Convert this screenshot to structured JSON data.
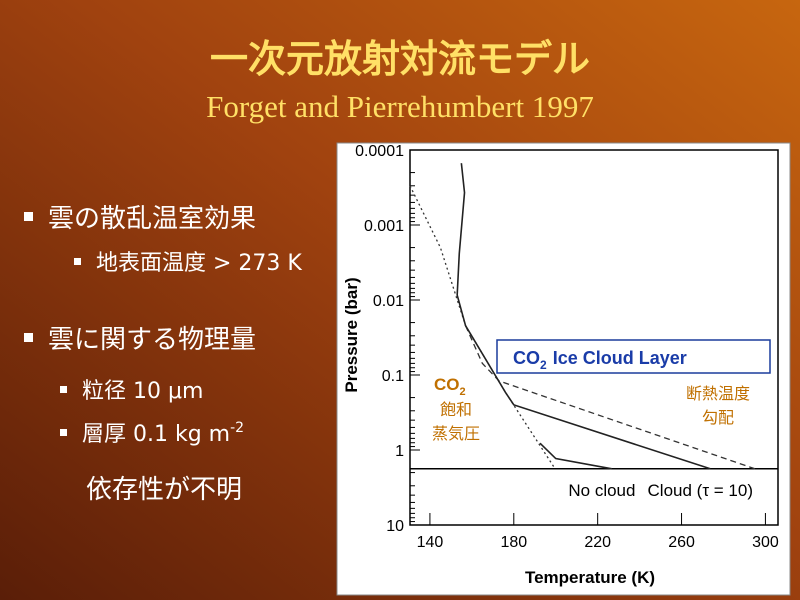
{
  "title": "一次元放射対流モデル",
  "subtitle": "Forget and Pierrehumbert 1997",
  "bullets": [
    {
      "text": "雲の散乱温室効果",
      "sub_bullets": [
        {
          "text": "地表面温度 > 273 K"
        }
      ]
    },
    {
      "text": "雲に関する物理量",
      "sub_bullets": [
        {
          "text": "粒径 10 μm"
        },
        {
          "text": "層厚 0.1 kg m",
          "sup": "-2"
        }
      ]
    }
  ],
  "note": "依存性が不明",
  "chart_data": {
    "type": "line",
    "xlabel": "Temperature (K)",
    "ylabel": "Pressure (bar)",
    "xlim": [
      130.5,
      306
    ],
    "xticks": [
      140,
      180,
      220,
      260,
      300
    ],
    "ylim": [
      0.0001,
      10
    ],
    "yticks": [
      0.0001,
      0.001,
      0.01,
      0.1,
      1,
      10
    ],
    "yscale": "log",
    "y_inverted": true,
    "surface": 1.78,
    "series": [
      {
        "style": "dotted",
        "color": "#333333",
        "x": [
          130.5,
          145,
          157,
          176,
          199.7
        ],
        "values": [
          0.0003,
          0.002,
          0.022,
          0.17,
          1.78
        ]
      },
      {
        "style": "dashed",
        "color": "#333333",
        "x": [
          157,
          165,
          173,
          295
        ],
        "values": [
          0.022,
          0.07,
          0.12,
          1.78
        ]
      },
      {
        "name": "Cloud (τ = 10)",
        "style": "solid",
        "color": "#222222",
        "x": [
          155,
          156.5,
          154,
          153,
          157,
          176,
          180,
          273.7
        ],
        "values": [
          0.00015,
          0.00037,
          0.0024,
          0.0086,
          0.022,
          0.17,
          0.25,
          1.78
        ]
      },
      {
        "name": "No cloud",
        "style": "solid",
        "color": "#222222",
        "x": [
          192.5,
          200,
          226.8
        ],
        "values": [
          0.81,
          1.3,
          1.78
        ]
      }
    ],
    "cloud_layer_label": [
      "CO",
      "2",
      "Ice Cloud Layer"
    ],
    "saturation_label": [
      "CO",
      "2",
      "飽和",
      "蒸気圧"
    ],
    "adiabat_label": [
      "断熱温度",
      "勾配"
    ]
  }
}
